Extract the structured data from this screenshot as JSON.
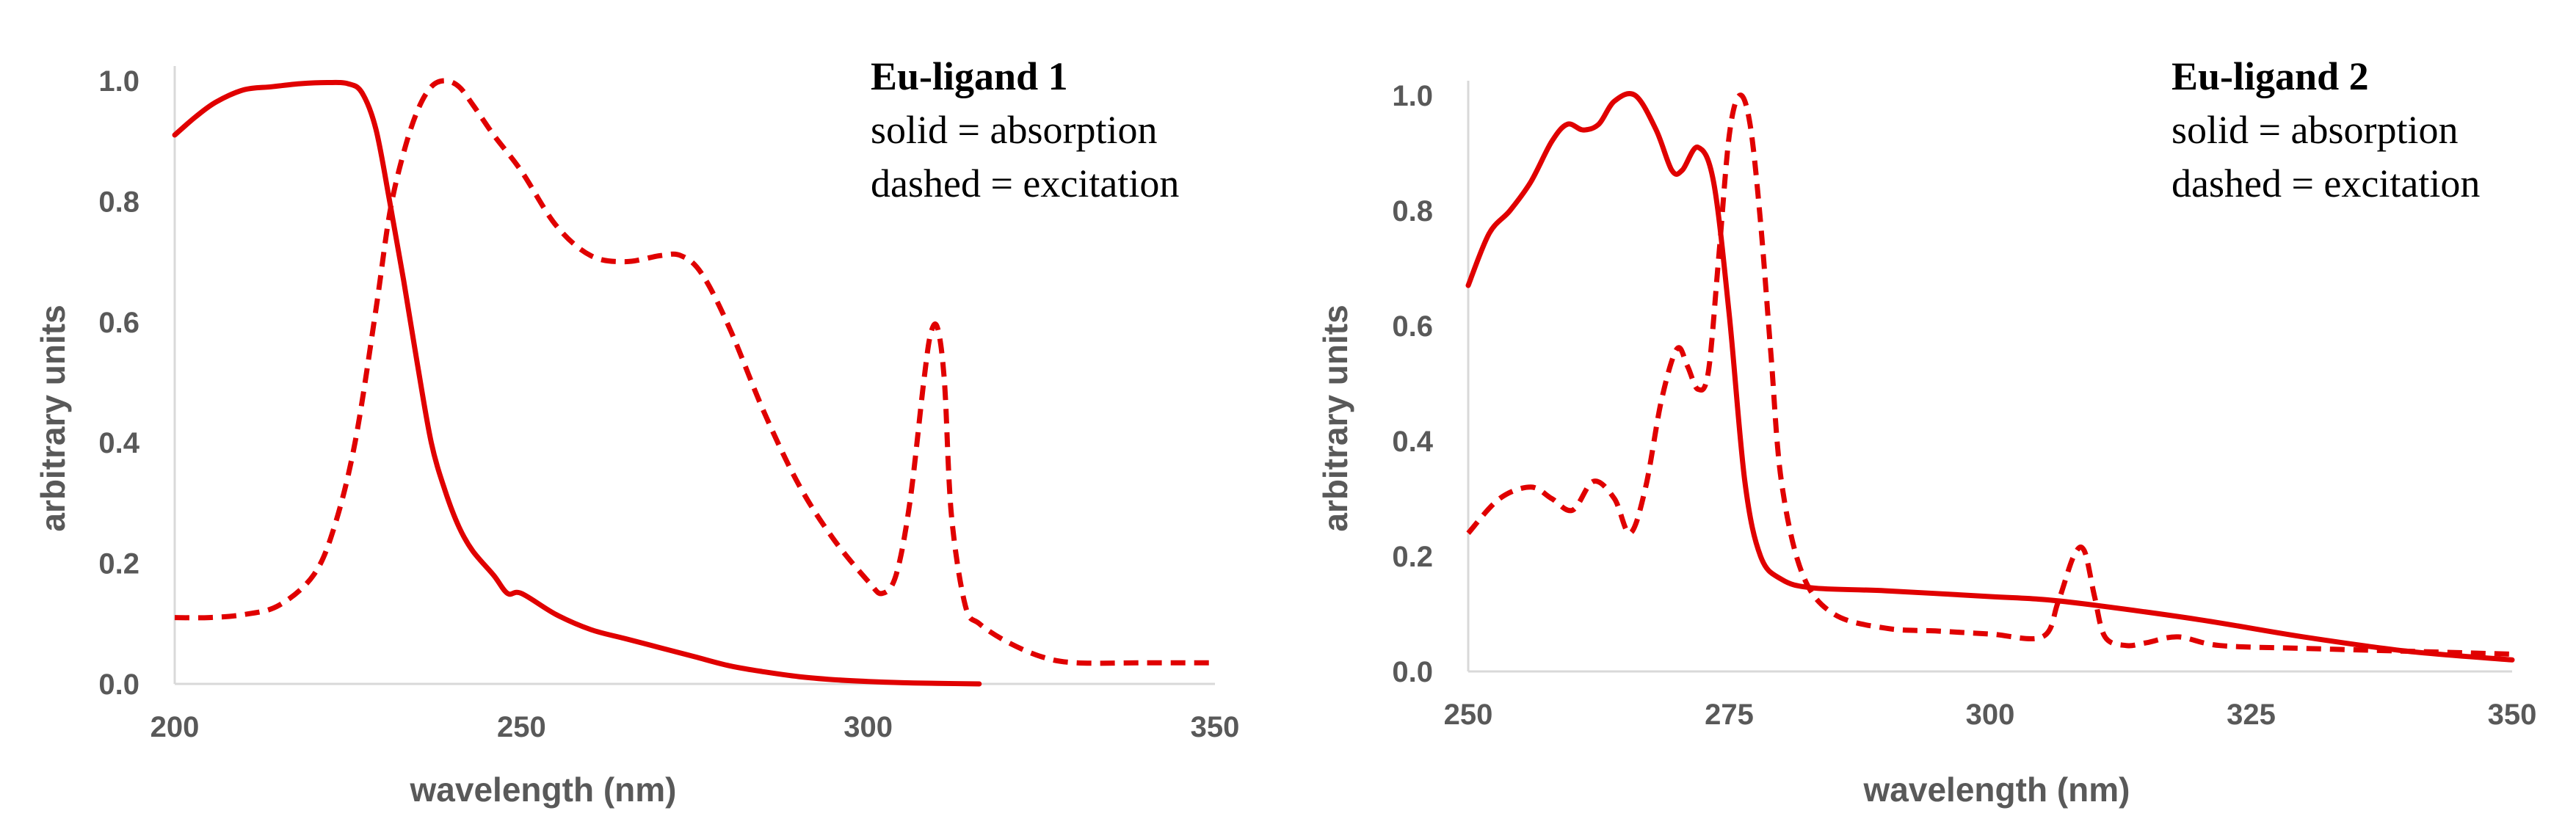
{
  "colors": {
    "series": "#e00000",
    "axis": "#d9d9d9",
    "tick_text": "#595959",
    "background": "#ffffff"
  },
  "chart_data": [
    {
      "type": "line",
      "title": "Eu-ligand 1",
      "annotation_lines": [
        "solid = absorption",
        "dashed = excitation"
      ],
      "xlabel": "wavelength (nm)",
      "ylabel": "arbitrary units",
      "xlim": [
        200,
        350
      ],
      "ylim": [
        0,
        1.0
      ],
      "x_ticks": [
        200,
        250,
        300,
        350
      ],
      "y_ticks": [
        0.0,
        0.2,
        0.4,
        0.6,
        0.8,
        1.0
      ],
      "y_tick_labels": [
        "0.0",
        "0.2",
        "0.4",
        "0.6",
        "0.8",
        "1.0"
      ],
      "grid": false,
      "series": [
        {
          "name": "absorption",
          "style": "solid",
          "x": [
            200,
            203,
            206,
            210,
            214,
            218,
            222,
            225,
            227,
            229,
            231,
            233,
            235,
            237,
            239,
            241,
            243,
            246,
            248,
            250,
            255,
            260,
            265,
            270,
            275,
            280,
            285,
            290,
            295,
            300,
            305,
            310,
            316
          ],
          "y": [
            0.91,
            0.94,
            0.965,
            0.985,
            0.99,
            0.995,
            0.997,
            0.995,
            0.98,
            0.92,
            0.8,
            0.67,
            0.53,
            0.4,
            0.32,
            0.26,
            0.22,
            0.18,
            0.15,
            0.15,
            0.115,
            0.09,
            0.075,
            0.06,
            0.045,
            0.03,
            0.02,
            0.012,
            0.007,
            0.004,
            0.002,
            0.001,
            0.0
          ]
        },
        {
          "name": "excitation",
          "style": "dashed",
          "x": [
            200,
            205,
            210,
            215,
            220,
            223,
            226,
            229,
            231,
            233,
            235,
            237,
            239,
            241,
            243,
            246,
            250,
            255,
            260,
            265,
            270,
            273,
            276,
            280,
            285,
            290,
            295,
            300,
            302,
            304,
            306,
            308,
            309,
            310,
            311,
            312,
            314,
            316,
            320,
            325,
            330,
            340,
            350
          ],
          "y": [
            0.11,
            0.11,
            0.115,
            0.13,
            0.18,
            0.26,
            0.4,
            0.62,
            0.78,
            0.88,
            0.95,
            0.99,
            1.0,
            0.99,
            0.96,
            0.91,
            0.85,
            0.76,
            0.71,
            0.7,
            0.71,
            0.71,
            0.68,
            0.59,
            0.45,
            0.33,
            0.24,
            0.17,
            0.15,
            0.18,
            0.3,
            0.5,
            0.58,
            0.59,
            0.5,
            0.28,
            0.13,
            0.1,
            0.07,
            0.045,
            0.035,
            0.035,
            0.035
          ]
        }
      ]
    },
    {
      "type": "line",
      "title": "Eu-ligand 2",
      "annotation_lines": [
        "solid = absorption",
        "dashed = excitation"
      ],
      "xlabel": "wavelength (nm)",
      "ylabel": "arbitrary units",
      "xlim": [
        250,
        350
      ],
      "ylim": [
        0,
        1.0
      ],
      "x_ticks": [
        250,
        275,
        300,
        325,
        350
      ],
      "y_ticks": [
        0.0,
        0.2,
        0.4,
        0.6,
        0.8,
        1.0
      ],
      "y_tick_labels": [
        "0.0",
        "0.2",
        "0.4",
        "0.6",
        "0.8",
        "1.0"
      ],
      "grid": false,
      "series": [
        {
          "name": "absorption",
          "style": "solid",
          "x": [
            250,
            252,
            254,
            256,
            258,
            259.5,
            261,
            262.5,
            264,
            266,
            268,
            269.5,
            270.5,
            272,
            273.5,
            275,
            276.5,
            278,
            280,
            283,
            290,
            300,
            305,
            310,
            320,
            330,
            340,
            350
          ],
          "y": [
            0.67,
            0.76,
            0.8,
            0.85,
            0.92,
            0.95,
            0.94,
            0.95,
            0.99,
            1.0,
            0.94,
            0.87,
            0.87,
            0.91,
            0.85,
            0.62,
            0.33,
            0.2,
            0.16,
            0.145,
            0.14,
            0.13,
            0.125,
            0.115,
            0.09,
            0.06,
            0.035,
            0.02
          ]
        },
        {
          "name": "excitation",
          "style": "dashed",
          "x": [
            250,
            253,
            256,
            258,
            260,
            262,
            264,
            265.5,
            267,
            268.5,
            270,
            271,
            272,
            273,
            274,
            275,
            276,
            277,
            278,
            279,
            280,
            282,
            285,
            290,
            295,
            300,
            305,
            306.5,
            308,
            309,
            310,
            311,
            313,
            315,
            318,
            322,
            330,
            340,
            350
          ],
          "y": [
            0.24,
            0.3,
            0.32,
            0.3,
            0.28,
            0.33,
            0.3,
            0.24,
            0.32,
            0.47,
            0.56,
            0.53,
            0.49,
            0.52,
            0.72,
            0.93,
            1.0,
            0.95,
            0.78,
            0.55,
            0.33,
            0.17,
            0.1,
            0.075,
            0.07,
            0.065,
            0.06,
            0.12,
            0.2,
            0.21,
            0.13,
            0.06,
            0.045,
            0.05,
            0.06,
            0.045,
            0.04,
            0.035,
            0.03
          ]
        }
      ]
    }
  ]
}
